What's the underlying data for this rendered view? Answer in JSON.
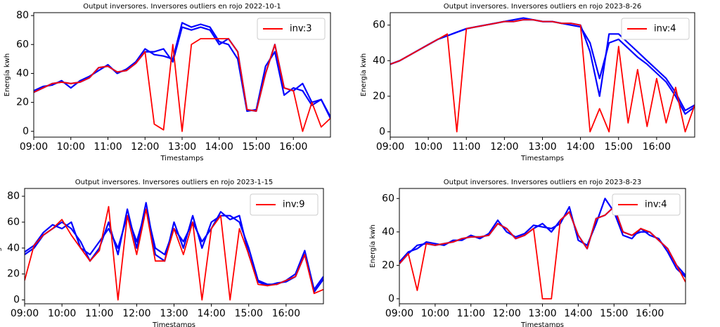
{
  "chart_data": [
    {
      "type": "line",
      "title": "Output inversores. Inversores outliers en rojo 2022-10-1",
      "xlabel": "Timestamps",
      "ylabel": "Energía kwh",
      "legend": "upper right",
      "x": [
        9,
        9.25,
        9.5,
        9.75,
        10,
        10.25,
        10.5,
        10.75,
        11,
        11.25,
        11.5,
        11.75,
        12,
        12.25,
        12.5,
        12.75,
        13,
        13.25,
        13.5,
        13.75,
        14,
        14.25,
        14.5,
        14.75,
        15,
        15.25,
        15.5,
        15.75,
        16,
        16.25,
        16.5,
        16.75,
        17
      ],
      "xlim": [
        9,
        17
      ],
      "xticks": [
        {
          "value": 9,
          "label": "09:00"
        },
        {
          "value": 10,
          "label": "10:00"
        },
        {
          "value": 11,
          "label": "11:00"
        },
        {
          "value": 12,
          "label": "12:00"
        },
        {
          "value": 13,
          "label": "13:00"
        },
        {
          "value": 14,
          "label": "14:00"
        },
        {
          "value": 15,
          "label": "15:00"
        },
        {
          "value": 16,
          "label": "16:00"
        }
      ],
      "ylim": [
        -4,
        82
      ],
      "yticks": [
        0,
        20,
        40,
        60,
        80
      ],
      "series": [
        {
          "color": "#0000ff",
          "values": [
            27,
            30,
            33,
            34,
            33,
            34,
            37,
            44,
            45,
            41,
            42,
            47,
            55,
            55,
            57,
            48,
            72,
            70,
            72,
            70,
            60,
            64,
            55,
            15,
            14,
            40,
            60,
            30,
            28,
            33,
            20,
            22,
            9
          ]
        },
        {
          "color": "#0000ff",
          "values": [
            28,
            31,
            32,
            35,
            30,
            35,
            38,
            42,
            46,
            40,
            43,
            48,
            57,
            53,
            52,
            50,
            75,
            72,
            74,
            72,
            62,
            60,
            50,
            14,
            15,
            45,
            55,
            25,
            30,
            28,
            18,
            22,
            10
          ]
        },
        {
          "name": "inv:3",
          "color": "#ff0000",
          "values": [
            27,
            30,
            33,
            34,
            33,
            34,
            37,
            44,
            45,
            41,
            42,
            47,
            55,
            5,
            1,
            60,
            0,
            60,
            64,
            64,
            64,
            64,
            55,
            15,
            14,
            40,
            60,
            30,
            28,
            0,
            20,
            3,
            9
          ]
        }
      ]
    },
    {
      "type": "line",
      "title": "Output inversores. Inversores outliers en rojo 2023-8-26",
      "xlabel": "Timestamps",
      "ylabel": "Energía kwh",
      "legend": "upper right",
      "x": [
        9,
        9.25,
        9.5,
        9.75,
        10,
        10.25,
        10.5,
        10.75,
        11,
        11.25,
        11.5,
        11.75,
        12,
        12.25,
        12.5,
        12.75,
        13,
        13.25,
        13.5,
        13.75,
        14,
        14.25,
        14.5,
        14.75,
        15,
        15.25,
        15.5,
        15.75,
        16,
        16.25,
        16.5,
        16.75,
        17
      ],
      "xlim": [
        9,
        17
      ],
      "xticks": [
        {
          "value": 9,
          "label": "09:00"
        },
        {
          "value": 10,
          "label": "10:00"
        },
        {
          "value": 11,
          "label": "11:00"
        },
        {
          "value": 12,
          "label": "12:00"
        },
        {
          "value": 13,
          "label": "13:00"
        },
        {
          "value": 14,
          "label": "14:00"
        },
        {
          "value": 15,
          "label": "15:00"
        },
        {
          "value": 16,
          "label": "16:00"
        }
      ],
      "ylim": [
        -3,
        67
      ],
      "yticks": [
        0,
        20,
        40,
        60
      ],
      "series": [
        {
          "color": "#0000ff",
          "values": [
            38,
            40,
            43,
            46,
            49,
            52,
            54,
            56,
            58,
            59,
            60,
            61,
            62,
            62,
            63,
            63,
            62,
            62,
            61,
            61,
            60,
            45,
            20,
            55,
            55,
            50,
            45,
            40,
            35,
            30,
            22,
            12,
            15
          ]
        },
        {
          "color": "#0000ff",
          "values": [
            38,
            40,
            43,
            46,
            49,
            52,
            54,
            56,
            58,
            59,
            60,
            61,
            62,
            63,
            64,
            63,
            62,
            62,
            61,
            60,
            59,
            50,
            30,
            50,
            52,
            47,
            42,
            38,
            33,
            28,
            20,
            10,
            14
          ]
        },
        {
          "name": "inv:4",
          "color": "#ff0000",
          "values": [
            38,
            40,
            43,
            46,
            49,
            52,
            55,
            0,
            58,
            59,
            60,
            61,
            62,
            62,
            63,
            63,
            62,
            62,
            61,
            61,
            60,
            0,
            13,
            0,
            48,
            5,
            35,
            3,
            30,
            5,
            25,
            0,
            15
          ]
        }
      ]
    },
    {
      "type": "line",
      "title": "Output inversores. Inversores outliers en rojo 2023-1-15",
      "xlabel": "Timestamps",
      "ylabel": "Energía kwh",
      "legend": "upper right",
      "x": [
        9,
        9.25,
        9.5,
        9.75,
        10,
        10.25,
        10.5,
        10.75,
        11,
        11.25,
        11.5,
        11.75,
        12,
        12.25,
        12.5,
        12.75,
        13,
        13.25,
        13.5,
        13.75,
        14,
        14.25,
        14.5,
        14.75,
        15,
        15.25,
        15.5,
        15.75,
        16,
        16.25,
        16.5,
        16.75,
        17
      ],
      "xlim": [
        9,
        17
      ],
      "xticks": [
        {
          "value": 9,
          "label": "09:00"
        },
        {
          "value": 10,
          "label": "10:00"
        },
        {
          "value": 11,
          "label": "11:00"
        },
        {
          "value": 12,
          "label": "12:00"
        },
        {
          "value": 13,
          "label": "13:00"
        },
        {
          "value": 14,
          "label": "14:00"
        },
        {
          "value": 15,
          "label": "15:00"
        },
        {
          "value": 16,
          "label": "16:00"
        }
      ],
      "ylim": [
        -3,
        86
      ],
      "yticks": [
        0,
        20,
        40,
        60,
        80
      ],
      "series": [
        {
          "color": "#0000ff",
          "values": [
            35,
            40,
            50,
            55,
            60,
            55,
            45,
            30,
            40,
            60,
            35,
            70,
            40,
            75,
            35,
            30,
            60,
            40,
            65,
            40,
            60,
            65,
            65,
            60,
            40,
            15,
            12,
            12,
            15,
            20,
            38,
            8,
            18
          ]
        },
        {
          "color": "#0000ff",
          "values": [
            37,
            42,
            52,
            58,
            55,
            60,
            40,
            35,
            45,
            55,
            40,
            65,
            45,
            70,
            40,
            35,
            55,
            45,
            60,
            45,
            55,
            68,
            62,
            65,
            35,
            14,
            11,
            13,
            14,
            18,
            35,
            6,
            16
          ]
        },
        {
          "name": "inv:9",
          "color": "#ff0000",
          "values": [
            15,
            42,
            50,
            55,
            62,
            50,
            40,
            30,
            38,
            72,
            0,
            65,
            35,
            70,
            30,
            30,
            55,
            35,
            60,
            0,
            55,
            65,
            0,
            55,
            35,
            12,
            11,
            12,
            15,
            18,
            35,
            5,
            8
          ]
        }
      ]
    },
    {
      "type": "line",
      "title": "Output inversores. Inversores outliers en rojo 2023-8-23",
      "xlabel": "Timestamps",
      "ylabel": "Energía kwh",
      "legend": "upper right",
      "x": [
        9,
        9.25,
        9.5,
        9.75,
        10,
        10.25,
        10.5,
        10.75,
        11,
        11.25,
        11.5,
        11.75,
        12,
        12.25,
        12.5,
        12.75,
        13,
        13.25,
        13.5,
        13.75,
        14,
        14.25,
        14.5,
        14.75,
        15,
        15.25,
        15.5,
        15.75,
        16,
        16.25,
        16.5,
        16.75,
        17
      ],
      "xlim": [
        9,
        17
      ],
      "xticks": [
        {
          "value": 9,
          "label": "09:00"
        },
        {
          "value": 10,
          "label": "10:00"
        },
        {
          "value": 11,
          "label": "11:00"
        },
        {
          "value": 12,
          "label": "12:00"
        },
        {
          "value": 13,
          "label": "13:00"
        },
        {
          "value": 14,
          "label": "14:00"
        },
        {
          "value": 15,
          "label": "15:00"
        },
        {
          "value": 16,
          "label": "16:00"
        }
      ],
      "ylim": [
        -3,
        66
      ],
      "yticks": [
        0,
        20,
        40,
        60
      ],
      "series": [
        {
          "color": "#0000ff",
          "values": [
            21,
            27,
            32,
            33,
            32,
            33,
            34,
            36,
            37,
            37,
            38,
            45,
            42,
            36,
            38,
            42,
            45,
            40,
            47,
            52,
            38,
            30,
            48,
            50,
            55,
            40,
            38,
            40,
            40,
            35,
            30,
            20,
            14
          ]
        },
        {
          "color": "#0000ff",
          "values": [
            22,
            28,
            30,
            34,
            33,
            32,
            35,
            35,
            38,
            36,
            39,
            47,
            40,
            37,
            39,
            44,
            43,
            42,
            45,
            55,
            35,
            32,
            45,
            60,
            52,
            38,
            36,
            42,
            38,
            36,
            28,
            18,
            13
          ]
        },
        {
          "name": "inv:4",
          "color": "#ff0000",
          "values": [
            21,
            27,
            5,
            33,
            32,
            33,
            34,
            36,
            37,
            37,
            38,
            45,
            42,
            36,
            38,
            42,
            0,
            0,
            47,
            52,
            38,
            30,
            48,
            50,
            55,
            40,
            38,
            42,
            40,
            35,
            30,
            20,
            10
          ]
        }
      ]
    }
  ]
}
